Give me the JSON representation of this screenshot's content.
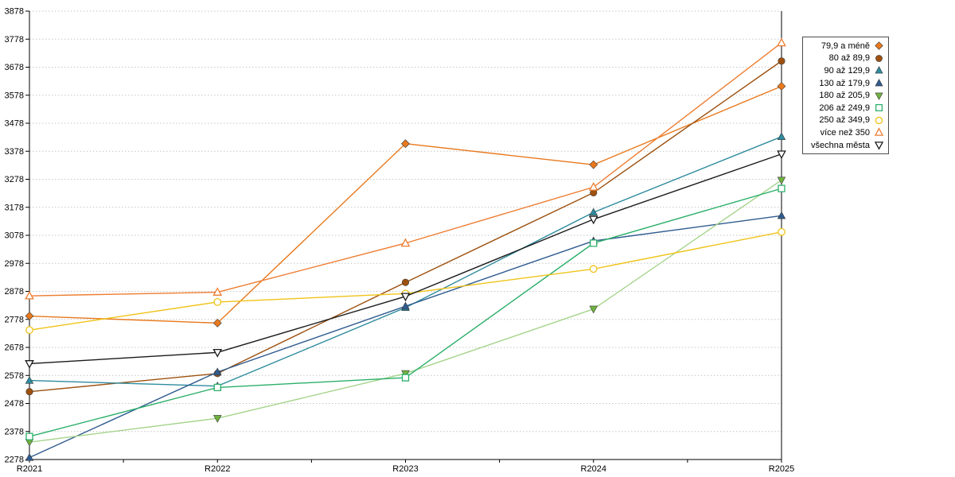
{
  "chart_data": {
    "type": "line",
    "title": "",
    "xlabel": "",
    "ylabel": "",
    "categories": [
      "R2021",
      "R2022",
      "R2023",
      "R2024",
      "R2025"
    ],
    "ylim": [
      2278,
      3878
    ],
    "yticks": [
      2278,
      2378,
      2478,
      2578,
      2678,
      2778,
      2878,
      2978,
      3078,
      3178,
      3278,
      3378,
      3478,
      3578,
      3678,
      3778,
      3878
    ],
    "grid": "horizontal-dotted",
    "legend_position": "right",
    "series": [
      {
        "name": "79,9 a méně",
        "color": "#E8791D",
        "marker": "diamond",
        "fill": "solid",
        "values": [
          2790,
          2765,
          3405,
          3330,
          3610
        ]
      },
      {
        "name": "80 až 89,9",
        "color": "#9D5110",
        "marker": "circle",
        "fill": "solid",
        "values": [
          2520,
          2585,
          2910,
          3230,
          3700
        ]
      },
      {
        "name": "90 až 129,9",
        "color": "#2E8B9E",
        "marker": "triangle-up",
        "fill": "solid",
        "values": [
          2560,
          2540,
          2820,
          3160,
          3430
        ]
      },
      {
        "name": "130 až 179,9",
        "color": "#2F5B8F",
        "marker": "triangle-up",
        "fill": "solid",
        "values": [
          2285,
          2590,
          2825,
          3058,
          3148
        ]
      },
      {
        "name": "180 až 205,9",
        "color": "#6FB33F",
        "line_color": "#A6D48C",
        "marker": "triangle-down",
        "fill": "solid",
        "values": [
          2340,
          2425,
          2585,
          2815,
          3275
        ]
      },
      {
        "name": "206 až 249,9",
        "color": "#2BAF6A",
        "marker": "square",
        "fill": "open",
        "values": [
          2360,
          2535,
          2570,
          3050,
          3245
        ]
      },
      {
        "name": "250 až 349,9",
        "color": "#EFC319",
        "marker": "circle",
        "fill": "open",
        "values": [
          2740,
          2840,
          2870,
          2958,
          3090
        ]
      },
      {
        "name": "více než 350",
        "color": "#ED7D31",
        "marker": "triangle-up",
        "fill": "open",
        "values": [
          2862,
          2875,
          3050,
          3250,
          3765
        ]
      },
      {
        "name": "všechna města",
        "color": "#1A1A1A",
        "marker": "triangle-down",
        "fill": "open",
        "values": [
          2620,
          2660,
          2860,
          3135,
          3368
        ]
      }
    ]
  }
}
